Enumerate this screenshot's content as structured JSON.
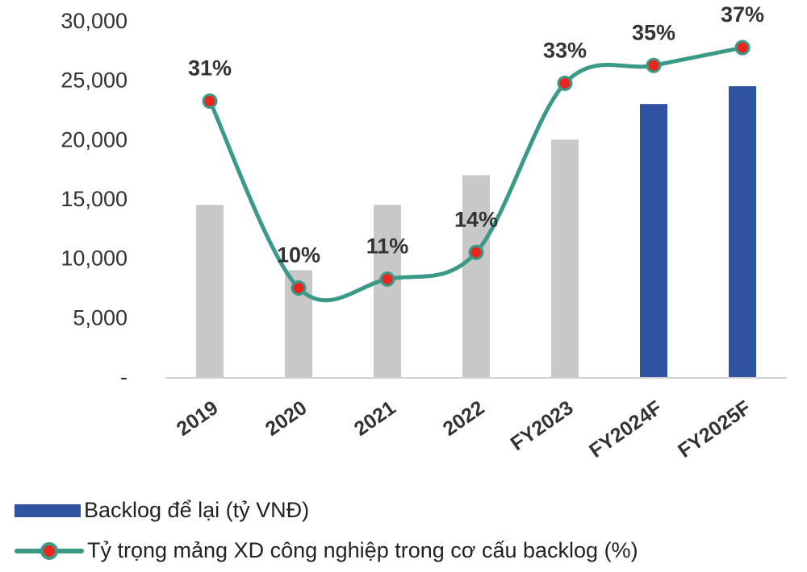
{
  "chart_data": {
    "type": "bar",
    "categories": [
      "2019",
      "2020",
      "2021",
      "2022",
      "FY2023",
      "FY2024F",
      "FY2025F"
    ],
    "series": [
      {
        "name": "Backlog để lại (tỷ VNĐ)",
        "type": "bar",
        "values": [
          14500,
          9000,
          14500,
          17000,
          20000,
          23000,
          24500
        ],
        "colors": [
          "#c8c8c8",
          "#c8c8c8",
          "#c8c8c8",
          "#c8c8c8",
          "#c8c8c8",
          "#2f53a0",
          "#2f53a0"
        ]
      },
      {
        "name": "Tỷ trọng mảng XD công nghiệp trong cơ cấu backlog (%)",
        "type": "line",
        "values": [
          31,
          10,
          11,
          14,
          33,
          35,
          37
        ],
        "labels": [
          "31%",
          "10%",
          "11%",
          "14%",
          "33%",
          "35%",
          "37%"
        ],
        "color": "#3a9a87",
        "marker_color": "#e8261e"
      }
    ],
    "y_axis": {
      "ylim": [
        0,
        30000
      ],
      "ticks": [
        0,
        5000,
        10000,
        15000,
        20000,
        25000,
        30000
      ],
      "tick_labels": [
        "-",
        "5,000",
        "10,000",
        "15,000",
        "20,000",
        "25,000",
        "30,000"
      ]
    },
    "line_axis_range": [
      0,
      40
    ],
    "grid": false,
    "legend_position": "bottom"
  },
  "legend": {
    "bar_label": "Backlog để lại (tỷ VNĐ)",
    "line_label": "Tỷ trọng mảng XD công nghiệp trong cơ cấu backlog (%)",
    "bar_color": "#2f53a0",
    "line_color": "#3a9a87",
    "marker_color": "#e8261e"
  }
}
